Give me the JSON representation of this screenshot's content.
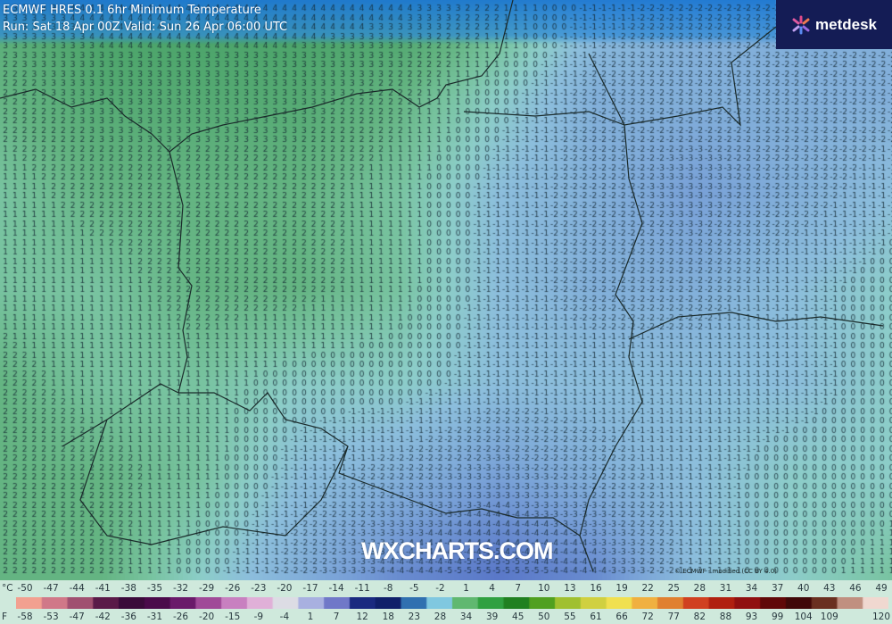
{
  "header": {
    "title": "ECMWF HRES 0.1 6hr Minimum Temperature",
    "subtitle": "Run: Sat 18 Apr 00Z Valid: Sun 26 Apr 06:00 UTC"
  },
  "logo": {
    "text": "metdesk",
    "icon": "asterisk-burst-icon",
    "background": "#141c55"
  },
  "watermark": "WXCHARTS.COM",
  "attribution": "© ECMWF - modified (CC BY 4.0)",
  "map": {
    "variable": "6hr minimum temperature",
    "unit": "°C",
    "coarse_temperature_field_celsius": [
      [
        3,
        4,
        4,
        4,
        4,
        2,
        -1,
        -2,
        -2,
        -2
      ],
      [
        2,
        3,
        3,
        3,
        2,
        0,
        -2,
        -2,
        -2,
        -2
      ],
      [
        1,
        2,
        2,
        2,
        1,
        -1,
        -2,
        -3,
        -2,
        -1
      ],
      [
        1,
        1,
        2,
        2,
        1,
        -1,
        -2,
        -2,
        -1,
        0
      ],
      [
        2,
        1,
        1,
        0,
        0,
        -1,
        -1,
        -1,
        -1,
        0
      ],
      [
        2,
        2,
        1,
        -1,
        -2,
        -3,
        -2,
        -1,
        0,
        0
      ],
      [
        2,
        2,
        0,
        -2,
        -4,
        -5,
        -4,
        -1,
        0,
        1
      ]
    ]
  },
  "legend": {
    "celsius_unit": "°C",
    "fahrenheit_unit": "F",
    "celsius_labels": [
      "-50",
      "-47",
      "-44",
      "-41",
      "-38",
      "-35",
      "-32",
      "-29",
      "-26",
      "-23",
      "-20",
      "-17",
      "-14",
      "-11",
      "-8",
      "-5",
      "-2",
      "1",
      "4",
      "7",
      "10",
      "13",
      "16",
      "19",
      "22",
      "25",
      "28",
      "31",
      "34",
      "37",
      "40",
      "43",
      "46",
      "49"
    ],
    "fahrenheit_labels": [
      "-58",
      "-53",
      "-47",
      "-42",
      "-36",
      "-31",
      "-26",
      "-20",
      "-15",
      "-9",
      "-4",
      "1",
      "7",
      "12",
      "18",
      "23",
      "28",
      "34",
      "39",
      "45",
      "50",
      "55",
      "61",
      "66",
      "72",
      "77",
      "82",
      "88",
      "93",
      "99",
      "104",
      "109",
      "",
      "120"
    ],
    "colors": [
      "#f2a090",
      "#d07888",
      "#a05070",
      "#5a1a48",
      "#3a0a3a",
      "#4a0a4a",
      "#6a1a6a",
      "#a04a98",
      "#c880c0",
      "#e0b0d8",
      "#dcdce4",
      "#a8b0e0",
      "#7078c8",
      "#1a2a80",
      "#10206a",
      "#3070b0",
      "#80c8e0",
      "#60b870",
      "#30a040",
      "#208020",
      "#50a020",
      "#a0c030",
      "#d0d040",
      "#f0e050",
      "#f0b040",
      "#e08030",
      "#d04020",
      "#b02010",
      "#901010",
      "#600808",
      "#400808",
      "#6a3020",
      "#c09080",
      "#f0d8d0"
    ]
  }
}
